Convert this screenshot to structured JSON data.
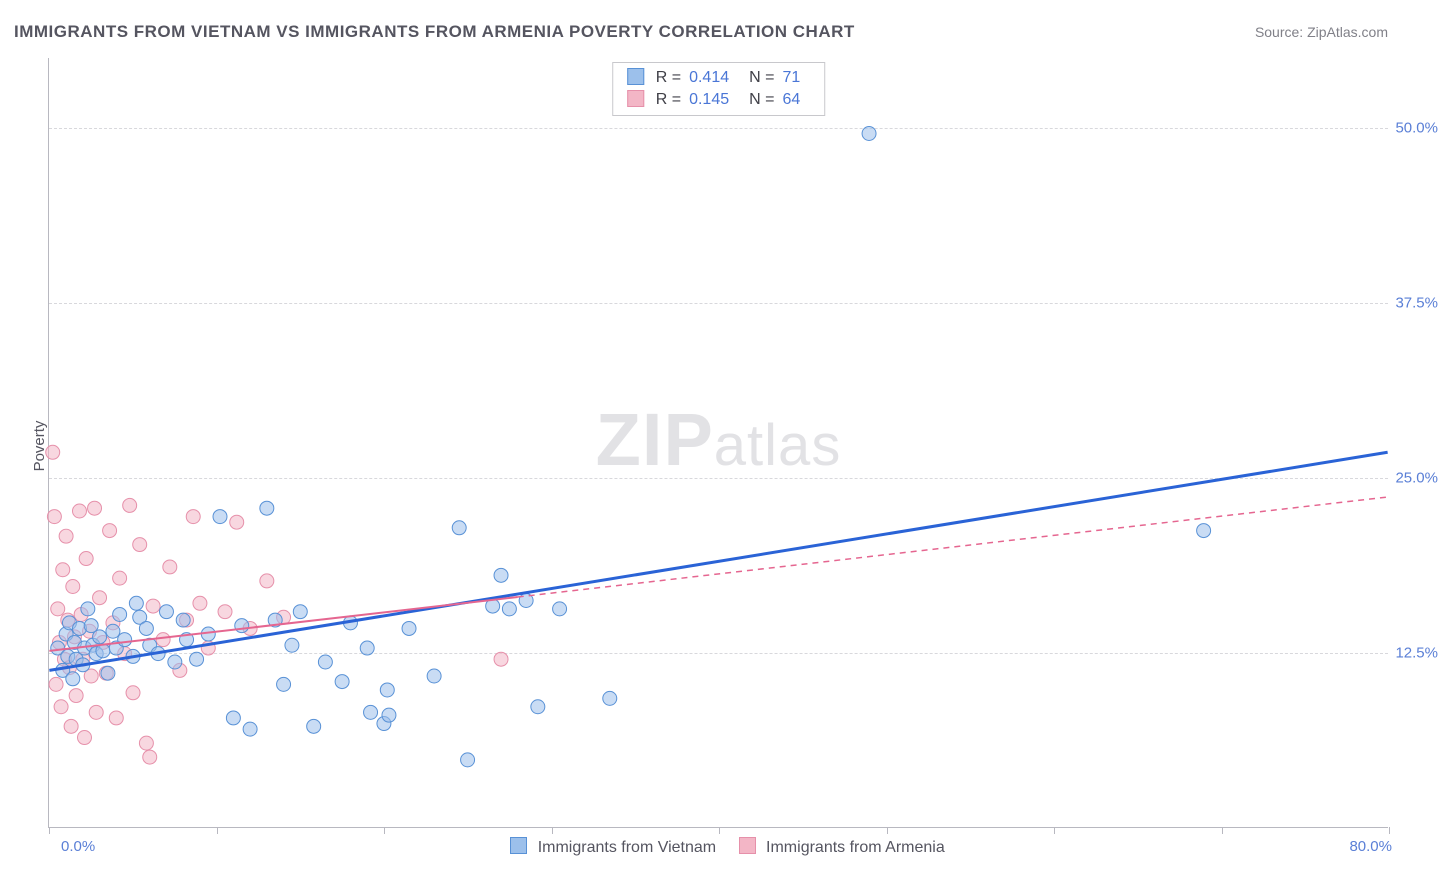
{
  "title": "IMMIGRANTS FROM VIETNAM VS IMMIGRANTS FROM ARMENIA POVERTY CORRELATION CHART",
  "source_label": "Source: ZipAtlas.com",
  "watermark_zip": "ZIP",
  "watermark_atlas": "atlas",
  "ylabel": "Poverty",
  "chart": {
    "type": "scatter",
    "xlim": [
      0,
      80
    ],
    "ylim": [
      0,
      55
    ],
    "x_axis_left_label": "0.0%",
    "x_axis_right_label": "80.0%",
    "x_tick_positions": [
      0,
      10,
      20,
      30,
      40,
      50,
      60,
      70,
      80
    ],
    "y_gridlines": [
      12.5,
      25.0,
      37.5,
      50.0
    ],
    "y_grid_labels": [
      "12.5%",
      "25.0%",
      "37.5%",
      "50.0%"
    ],
    "grid_color": "#d8d8dc",
    "axis_color": "#b8b8c0",
    "tick_label_color": "#5a7fd6",
    "label_color": "#555560",
    "background_color": "#ffffff",
    "marker_radius": 7,
    "marker_opacity": 0.55,
    "series": [
      {
        "name": "Immigrants from Vietnam",
        "fill": "#9cc0eb",
        "stroke": "#5891d6",
        "regression": {
          "x1": 0,
          "y1": 11.2,
          "x2": 80,
          "y2": 26.8,
          "stroke": "#2a63d6",
          "width": 3,
          "dash": "",
          "solid_until_x": 80
        },
        "R_label": "R =",
        "R_value": "0.414",
        "N_label": "N =",
        "N_value": "71",
        "points": [
          [
            0.5,
            12.8
          ],
          [
            0.8,
            11.2
          ],
          [
            1.0,
            13.8
          ],
          [
            1.1,
            12.2
          ],
          [
            1.2,
            14.6
          ],
          [
            1.4,
            10.6
          ],
          [
            1.5,
            13.2
          ],
          [
            1.6,
            12.0
          ],
          [
            1.8,
            14.2
          ],
          [
            2.0,
            11.6
          ],
          [
            2.1,
            12.8
          ],
          [
            2.3,
            15.6
          ],
          [
            2.5,
            14.4
          ],
          [
            2.6,
            13.0
          ],
          [
            2.8,
            12.4
          ],
          [
            3.0,
            13.6
          ],
          [
            3.2,
            12.6
          ],
          [
            3.5,
            11.0
          ],
          [
            3.8,
            14.0
          ],
          [
            4.0,
            12.8
          ],
          [
            4.2,
            15.2
          ],
          [
            4.5,
            13.4
          ],
          [
            5.0,
            12.2
          ],
          [
            5.2,
            16.0
          ],
          [
            5.4,
            15.0
          ],
          [
            5.8,
            14.2
          ],
          [
            6.0,
            13.0
          ],
          [
            6.5,
            12.4
          ],
          [
            7.0,
            15.4
          ],
          [
            7.5,
            11.8
          ],
          [
            8.0,
            14.8
          ],
          [
            8.2,
            13.4
          ],
          [
            8.8,
            12.0
          ],
          [
            9.5,
            13.8
          ],
          [
            10.2,
            22.2
          ],
          [
            11.0,
            7.8
          ],
          [
            11.5,
            14.4
          ],
          [
            12.0,
            7.0
          ],
          [
            13.0,
            22.8
          ],
          [
            13.5,
            14.8
          ],
          [
            14.0,
            10.2
          ],
          [
            14.5,
            13.0
          ],
          [
            15.0,
            15.4
          ],
          [
            15.8,
            7.2
          ],
          [
            16.5,
            11.8
          ],
          [
            17.5,
            10.4
          ],
          [
            18.0,
            14.6
          ],
          [
            19.0,
            12.8
          ],
          [
            19.2,
            8.2
          ],
          [
            20.0,
            7.4
          ],
          [
            20.2,
            9.8
          ],
          [
            20.3,
            8.0
          ],
          [
            21.5,
            14.2
          ],
          [
            23.0,
            10.8
          ],
          [
            24.5,
            21.4
          ],
          [
            25.0,
            4.8
          ],
          [
            26.5,
            15.8
          ],
          [
            27.0,
            18.0
          ],
          [
            27.5,
            15.6
          ],
          [
            28.5,
            16.2
          ],
          [
            29.2,
            8.6
          ],
          [
            30.5,
            15.6
          ],
          [
            33.5,
            9.2
          ],
          [
            49.0,
            49.6
          ],
          [
            69.0,
            21.2
          ]
        ]
      },
      {
        "name": "Immigrants from Armenia",
        "fill": "#f3b6c6",
        "stroke": "#e690aa",
        "regression": {
          "x1": 0,
          "y1": 12.6,
          "x2": 80,
          "y2": 23.6,
          "stroke": "#e56690",
          "width": 2,
          "dash": "6 5",
          "solid_until_x": 28
        },
        "R_label": "R =",
        "R_value": "0.145",
        "N_label": "N =",
        "N_value": "64",
        "points": [
          [
            0.2,
            26.8
          ],
          [
            0.3,
            22.2
          ],
          [
            0.4,
            10.2
          ],
          [
            0.5,
            15.6
          ],
          [
            0.6,
            13.2
          ],
          [
            0.7,
            8.6
          ],
          [
            0.8,
            18.4
          ],
          [
            0.9,
            12.0
          ],
          [
            1.0,
            20.8
          ],
          [
            1.1,
            14.8
          ],
          [
            1.2,
            11.4
          ],
          [
            1.3,
            7.2
          ],
          [
            1.4,
            17.2
          ],
          [
            1.5,
            13.6
          ],
          [
            1.6,
            9.4
          ],
          [
            1.8,
            22.6
          ],
          [
            1.9,
            15.2
          ],
          [
            2.0,
            12.0
          ],
          [
            2.1,
            6.4
          ],
          [
            2.2,
            19.2
          ],
          [
            2.4,
            14.0
          ],
          [
            2.5,
            10.8
          ],
          [
            2.7,
            22.8
          ],
          [
            2.8,
            8.2
          ],
          [
            3.0,
            16.4
          ],
          [
            3.2,
            13.2
          ],
          [
            3.4,
            11.0
          ],
          [
            3.6,
            21.2
          ],
          [
            3.8,
            14.6
          ],
          [
            4.0,
            7.8
          ],
          [
            4.2,
            17.8
          ],
          [
            4.5,
            12.4
          ],
          [
            4.8,
            23.0
          ],
          [
            5.0,
            9.6
          ],
          [
            5.4,
            20.2
          ],
          [
            5.8,
            6.0
          ],
          [
            6.0,
            5.0
          ],
          [
            6.2,
            15.8
          ],
          [
            6.8,
            13.4
          ],
          [
            7.2,
            18.6
          ],
          [
            7.8,
            11.2
          ],
          [
            8.2,
            14.8
          ],
          [
            8.6,
            22.2
          ],
          [
            9.0,
            16.0
          ],
          [
            9.5,
            12.8
          ],
          [
            10.5,
            15.4
          ],
          [
            11.2,
            21.8
          ],
          [
            12.0,
            14.2
          ],
          [
            13.0,
            17.6
          ],
          [
            14.0,
            15.0
          ],
          [
            27.0,
            12.0
          ]
        ]
      }
    ]
  },
  "legend_bottom": {
    "items": [
      {
        "label": "Immigrants from Vietnam",
        "fill": "#9cc0eb",
        "stroke": "#5891d6"
      },
      {
        "label": "Immigrants from Armenia",
        "fill": "#f3b6c6",
        "stroke": "#e690aa"
      }
    ]
  }
}
